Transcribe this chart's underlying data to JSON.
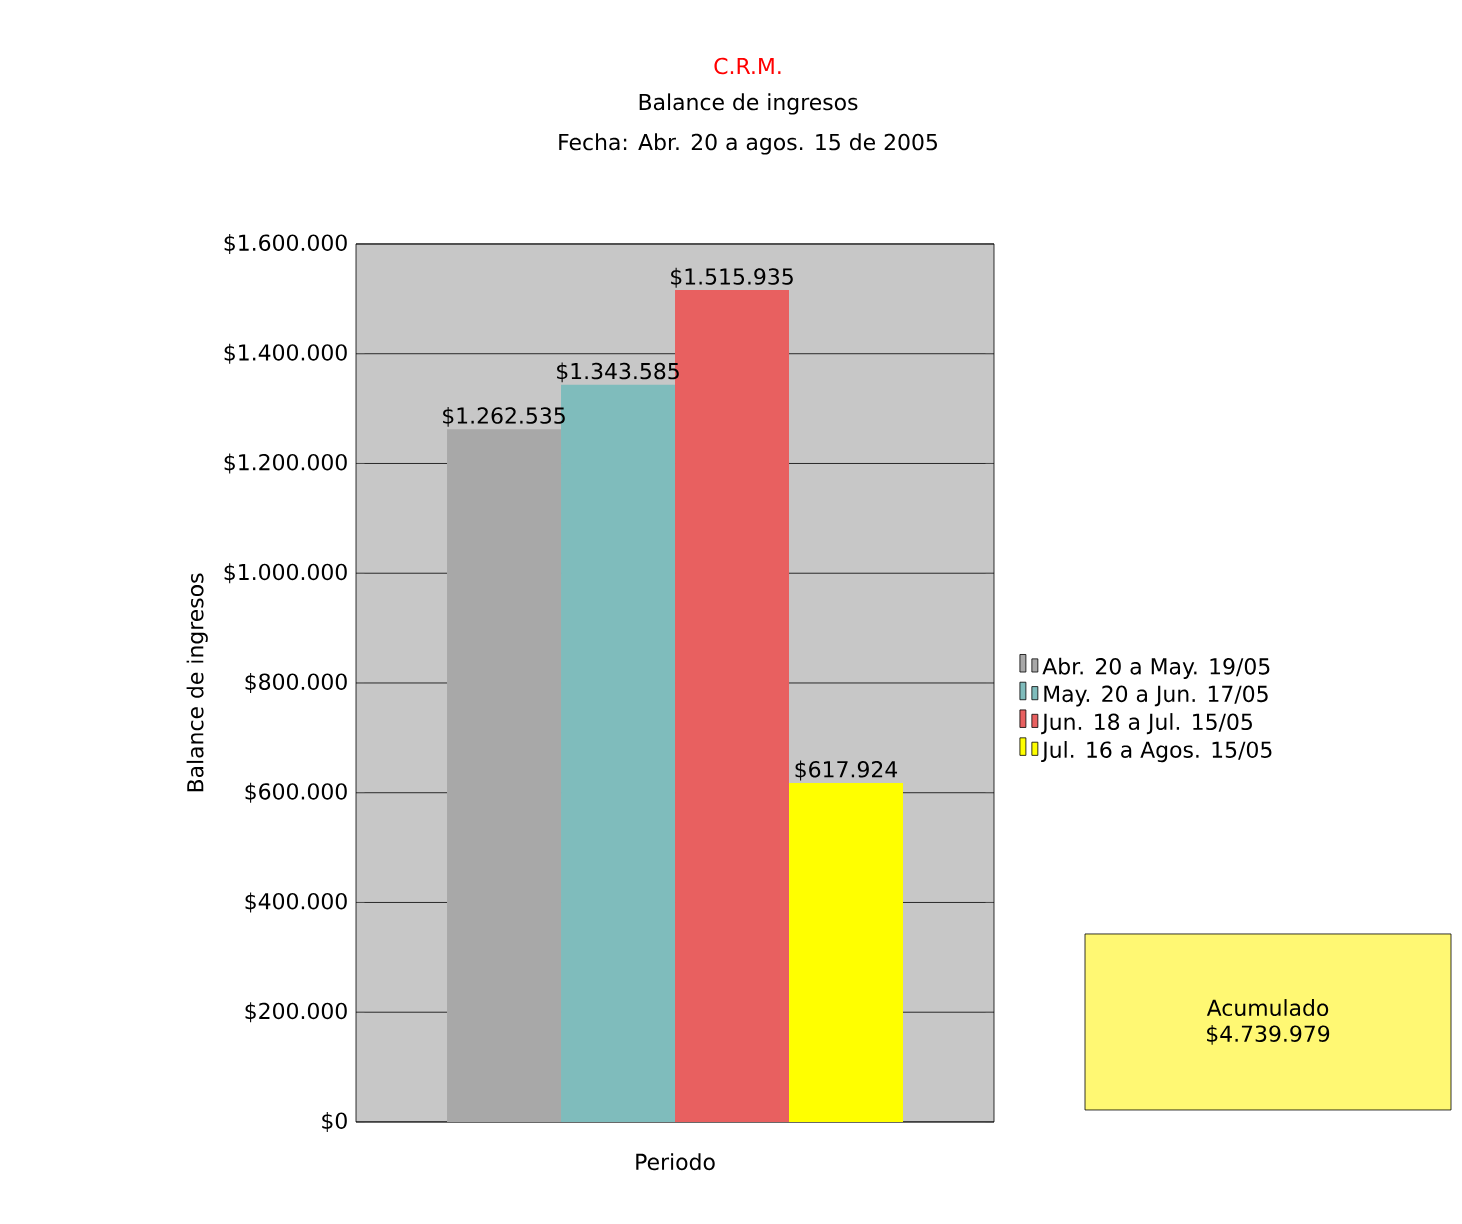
{
  "chart_data": {
    "type": "bar",
    "title": "C.R.M.",
    "subtitle": "Balance de ingresos",
    "annotations": [
      "Fecha: Abr. 20 a agos. 15 de 2005",
      "Acumulado",
      "$4.739.979"
    ],
    "xlabel": "Periodo",
    "ylabel": "Balance de ingresos",
    "categories": [
      null
    ],
    "series": [
      {
        "name": "Abr. 20 a May. 19/05",
        "color": "#a8a8a8",
        "values": [
          1262535
        ],
        "value_labels": [
          "$1.262.535"
        ]
      },
      {
        "name": "May. 20 a Jun. 17/05",
        "color": "#7fbcbc",
        "values": [
          1343585
        ],
        "value_labels": [
          "$1.343.585"
        ]
      },
      {
        "name": "Jun. 18 a Jul. 15/05",
        "color": "#e86060",
        "values": [
          1515935
        ],
        "value_labels": [
          "$1.515.935"
        ]
      },
      {
        "name": "Jul. 16 a Agos. 15/05",
        "color": "#ffff00",
        "values": [
          617924
        ],
        "value_labels": [
          "$617.924"
        ]
      }
    ],
    "ylim": [
      0,
      1600000
    ],
    "yticks": [
      {
        "value": 0,
        "label": "$0"
      },
      {
        "value": 200000,
        "label": "$200.000"
      },
      {
        "value": 400000,
        "label": "$400.000"
      },
      {
        "value": 600000,
        "label": "$600.000"
      },
      {
        "value": 800000,
        "label": "$800.000"
      },
      {
        "value": 1000000,
        "label": "$1.000.000"
      },
      {
        "value": 1200000,
        "label": "$1.200.000"
      },
      {
        "value": 1400000,
        "label": "$1.400.000"
      },
      {
        "value": 1600000,
        "label": "$1.600.000"
      }
    ],
    "grid": "y",
    "legend": "right"
  }
}
